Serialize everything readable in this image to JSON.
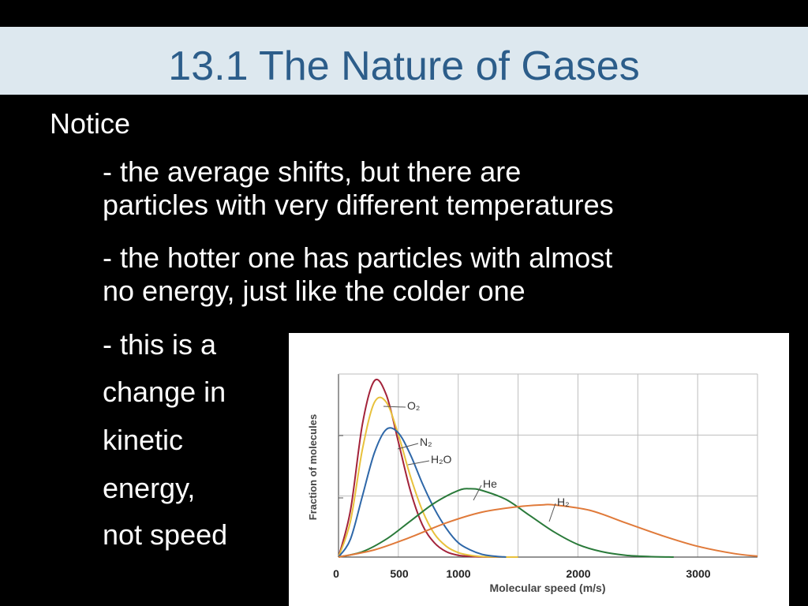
{
  "slide": {
    "title": "13.1 The Nature of Gases",
    "notice": "Notice",
    "bullet1_line1": "- the average shifts, but there are",
    "bullet1_line2": "particles with very different temperatures",
    "bullet2_line1": "- the hotter one has particles with almost",
    "bullet2_line2": "no energy, just like the colder one",
    "short_lines": [
      "- this is a",
      "change in",
      "kinetic",
      "energy,",
      "not speed"
    ]
  },
  "colors": {
    "background": "#000000",
    "title_band": "#dde8ef",
    "title_text": "#2c5d8a",
    "body_text": "#ffffff"
  },
  "chart_data": {
    "type": "line",
    "xlabel": "Molecular speed (m/s)",
    "ylabel": "Fraction of molecules",
    "x_tick_labels": [
      "0",
      "500",
      "1000",
      "2000",
      "3000"
    ],
    "xlim": [
      0,
      3500
    ],
    "grid": true,
    "series": [
      {
        "name": "O₂",
        "color": "#a3233a",
        "x": [
          0,
          100,
          200,
          300,
          400,
          500,
          600,
          700,
          800,
          900,
          1000,
          1100,
          1200,
          1300,
          1400
        ],
        "y": [
          0.0,
          0.26,
          0.74,
          0.98,
          0.9,
          0.64,
          0.37,
          0.18,
          0.08,
          0.03,
          0.01,
          0.004,
          0.001,
          0.0,
          0.0
        ]
      },
      {
        "name": "N₂",
        "color": "#e8c13c",
        "x": [
          0,
          100,
          200,
          300,
          400,
          500,
          600,
          700,
          800,
          900,
          1000,
          1100,
          1200,
          1300,
          1400,
          1500
        ],
        "y": [
          0.0,
          0.2,
          0.6,
          0.86,
          0.86,
          0.68,
          0.45,
          0.26,
          0.13,
          0.06,
          0.025,
          0.01,
          0.003,
          0.001,
          0.0,
          0.0
        ]
      },
      {
        "name": "H₂O",
        "color": "#2e67a8",
        "x": [
          0,
          100,
          200,
          300,
          400,
          500,
          600,
          700,
          800,
          900,
          1000,
          1100,
          1200,
          1300,
          1400
        ],
        "y": [
          0.0,
          0.1,
          0.34,
          0.58,
          0.71,
          0.69,
          0.57,
          0.41,
          0.27,
          0.16,
          0.08,
          0.04,
          0.015,
          0.005,
          0.0
        ]
      },
      {
        "name": "He",
        "color": "#2a7a3a",
        "x": [
          0,
          200,
          400,
          600,
          800,
          1000,
          1100,
          1200,
          1400,
          1600,
          1800,
          2000,
          2200,
          2400,
          2600,
          2800
        ],
        "y": [
          0.0,
          0.03,
          0.1,
          0.2,
          0.3,
          0.37,
          0.38,
          0.37,
          0.32,
          0.23,
          0.14,
          0.07,
          0.03,
          0.01,
          0.003,
          0.0
        ]
      },
      {
        "name": "H₂",
        "color": "#e07a3a",
        "x": [
          0,
          300,
          600,
          900,
          1200,
          1500,
          1700,
          1800,
          2100,
          2400,
          2700,
          3000,
          3300,
          3500
        ],
        "y": [
          0.0,
          0.04,
          0.11,
          0.19,
          0.25,
          0.28,
          0.29,
          0.29,
          0.26,
          0.19,
          0.12,
          0.06,
          0.02,
          0.005
        ]
      }
    ]
  }
}
